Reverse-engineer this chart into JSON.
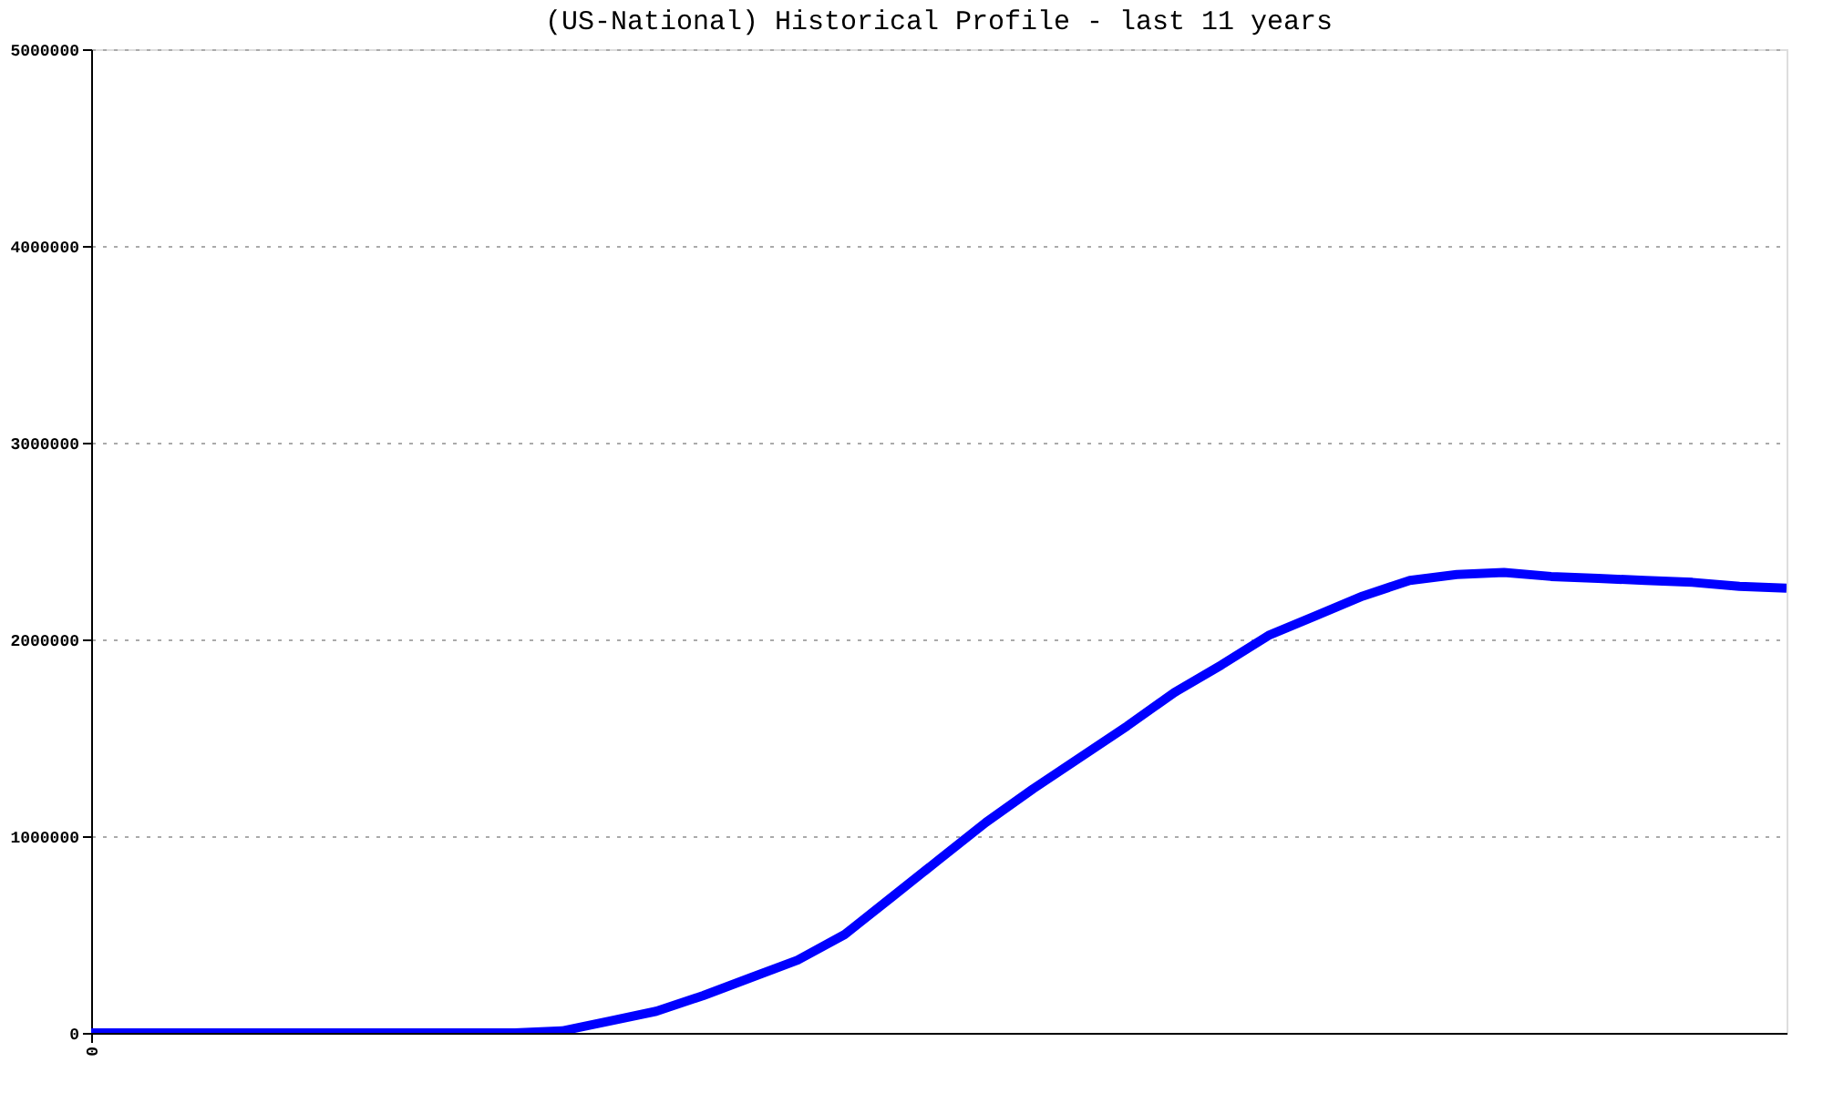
{
  "chart_data": {
    "type": "line",
    "title": "(US-National) Historical Profile - last 11 years",
    "categories": [
      "0",
      null,
      null,
      null,
      null,
      null,
      null,
      null,
      null,
      null,
      null,
      null,
      null,
      null,
      null,
      null,
      null,
      null,
      null,
      null,
      null,
      null,
      null,
      null,
      null,
      null,
      null,
      null,
      null,
      null,
      null,
      null,
      null,
      null,
      null,
      null,
      null
    ],
    "series": [
      {
        "color": "#0000ff",
        "values": [
          0,
          0,
          0,
          0,
          0,
          0,
          0,
          0,
          0,
          0,
          10000,
          60000,
          110000,
          190000,
          280000,
          370000,
          500000,
          690000,
          880000,
          1070000,
          1240000,
          1400000,
          1560000,
          1730000,
          1870000,
          2020000,
          2120000,
          2220000,
          2300000,
          2330000,
          2340000,
          2320000,
          2310000,
          2300000,
          2290000,
          2270000,
          2260000
        ]
      }
    ],
    "ylim": [
      0,
      5000000
    ],
    "yticks": [
      0,
      1000000,
      2000000,
      3000000,
      4000000,
      5000000
    ],
    "grid": "y",
    "legend": false,
    "marker": "none",
    "line_style": "solid"
  }
}
